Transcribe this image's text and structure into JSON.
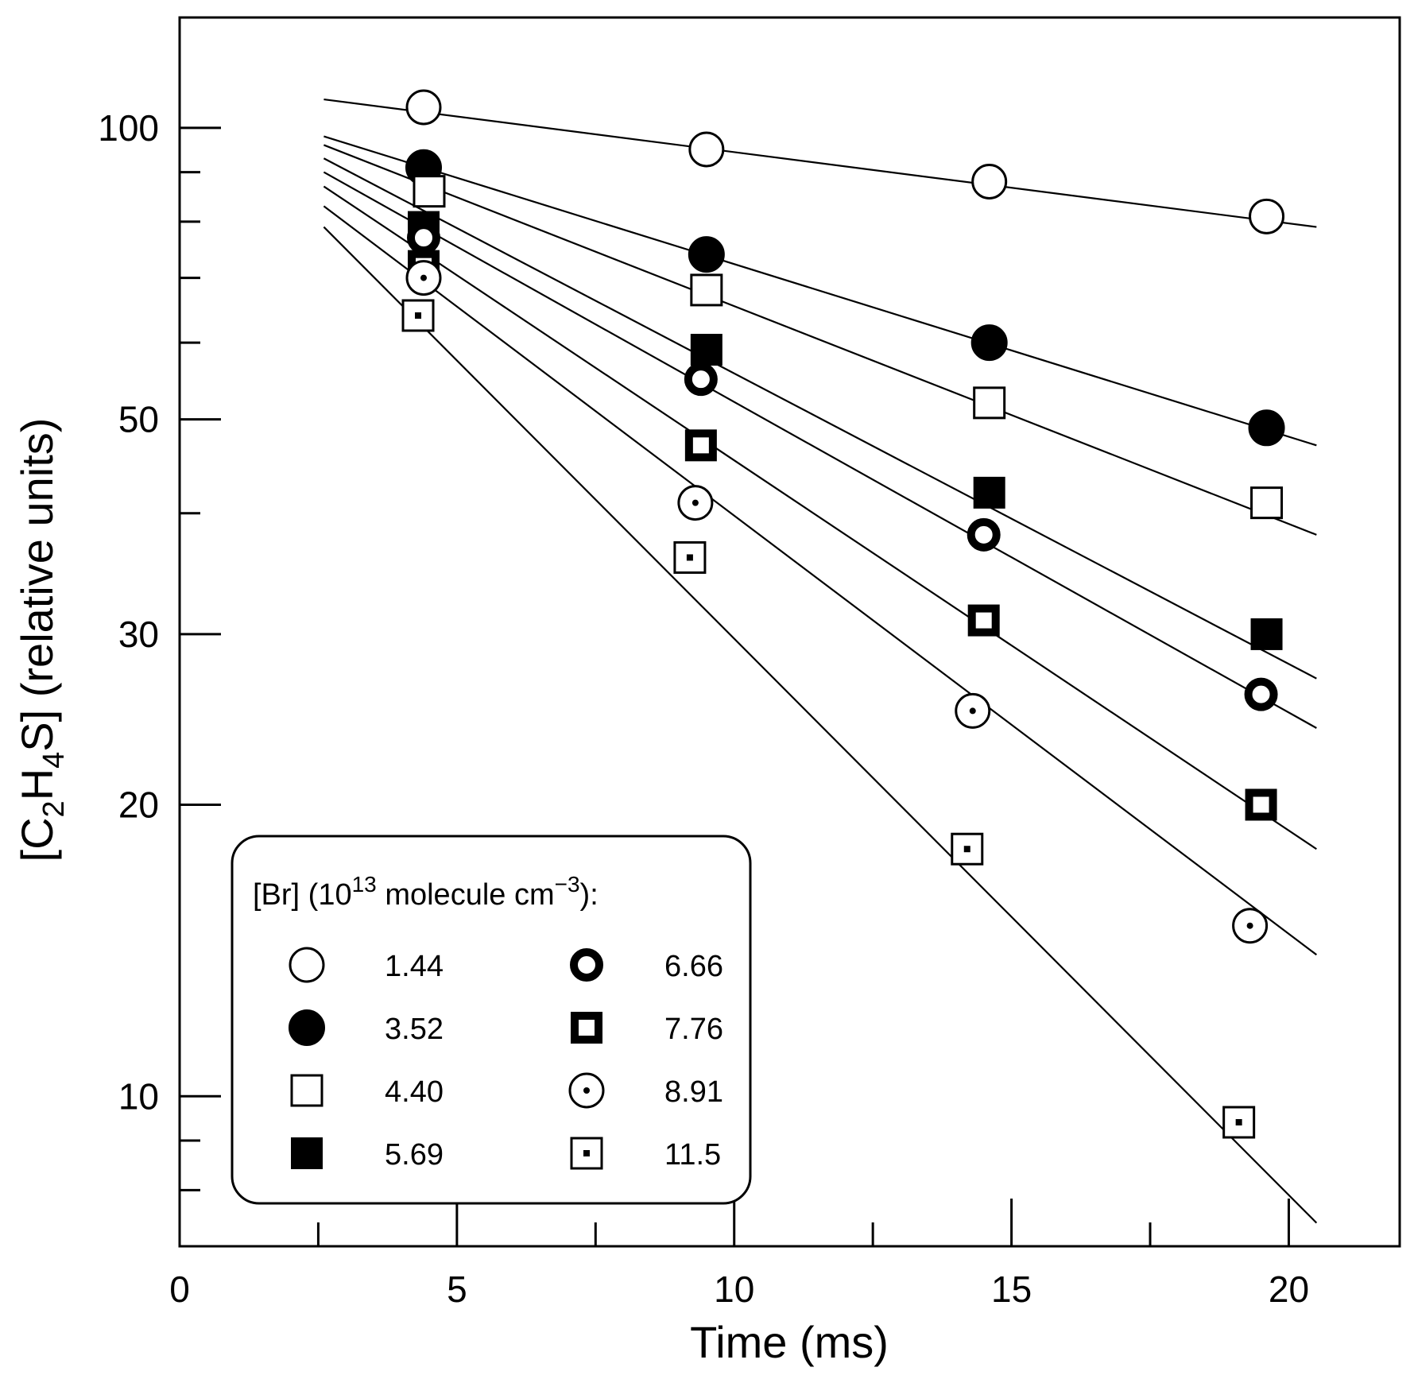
{
  "chart_data": {
    "type": "scatter",
    "scale": {
      "x": "linear",
      "y": "log"
    },
    "xlabel": "Time (ms)",
    "ylabel": {
      "prefix": "[C",
      "sub1": "2",
      "mid": "H",
      "sub2": "4",
      "suffix": "S] (relative units)"
    },
    "xlim": [
      0,
      22
    ],
    "ylim": [
      7,
      130
    ],
    "x_ticks": [
      0,
      5,
      10,
      15,
      20
    ],
    "x_tick_labels": [
      "0",
      "5",
      "10",
      "15",
      "20"
    ],
    "x_minor_ticks": [
      2.5,
      7.5,
      12.5,
      17.5
    ],
    "y_ticks": [
      10,
      20,
      30,
      50,
      100
    ],
    "y_tick_labels": [
      "10",
      "20",
      "30",
      "50",
      "100"
    ],
    "y_minor_ticks": [
      8,
      9,
      40,
      60,
      70,
      80,
      90
    ],
    "legend": {
      "title": {
        "prefix": "[Br] (10",
        "sup1": "13",
        "mid": " molecule cm",
        "sup2": "−3",
        "suffix": "):"
      },
      "position": "bottom-left"
    },
    "series": [
      {
        "name": "1.44",
        "marker": "open-circle",
        "x": [
          4.4,
          9.5,
          14.6,
          19.6
        ],
        "y": [
          105,
          95,
          88,
          81
        ],
        "fit": {
          "x": [
            2.6,
            20.5
          ],
          "y": [
            107,
            79
          ]
        }
      },
      {
        "name": "3.52",
        "marker": "filled-circle",
        "x": [
          4.4,
          9.5,
          14.6,
          19.6
        ],
        "y": [
          91,
          74,
          60,
          49
        ],
        "fit": {
          "x": [
            2.6,
            20.5
          ],
          "y": [
            98,
            47
          ]
        }
      },
      {
        "name": "4.40",
        "marker": "open-square",
        "x": [
          4.5,
          9.5,
          14.6,
          19.6
        ],
        "y": [
          86,
          68,
          52,
          41
        ],
        "fit": {
          "x": [
            2.6,
            20.5
          ],
          "y": [
            96,
            38
          ]
        }
      },
      {
        "name": "5.69",
        "marker": "filled-square",
        "x": [
          4.4,
          9.5,
          14.6,
          19.6
        ],
        "y": [
          79,
          59,
          42,
          30
        ],
        "fit": {
          "x": [
            2.6,
            20.5
          ],
          "y": [
            93,
            27
          ]
        }
      },
      {
        "name": "6.66",
        "marker": "thick-ring",
        "x": [
          4.4,
          9.4,
          14.5,
          19.5
        ],
        "y": [
          77,
          55,
          38,
          26
        ],
        "fit": {
          "x": [
            2.6,
            20.5
          ],
          "y": [
            90,
            24
          ]
        }
      },
      {
        "name": "7.76",
        "marker": "thick-square",
        "x": [
          4.4,
          9.4,
          14.5,
          19.5
        ],
        "y": [
          72,
          47,
          31,
          20
        ],
        "fit": {
          "x": [
            2.6,
            20.5
          ],
          "y": [
            87,
            18
          ]
        }
      },
      {
        "name": "8.91",
        "marker": "dotted-circle",
        "x": [
          4.4,
          9.3,
          14.3,
          19.3
        ],
        "y": [
          70,
          41,
          25,
          15
        ],
        "fit": {
          "x": [
            2.6,
            20.5
          ],
          "y": [
            83,
            14
          ]
        }
      },
      {
        "name": "11.5",
        "marker": "dotted-square",
        "x": [
          4.3,
          9.2,
          14.2,
          19.1
        ],
        "y": [
          64,
          36,
          18,
          9.4
        ],
        "fit": {
          "x": [
            2.6,
            20.5
          ],
          "y": [
            79,
            7.4
          ]
        }
      }
    ]
  }
}
